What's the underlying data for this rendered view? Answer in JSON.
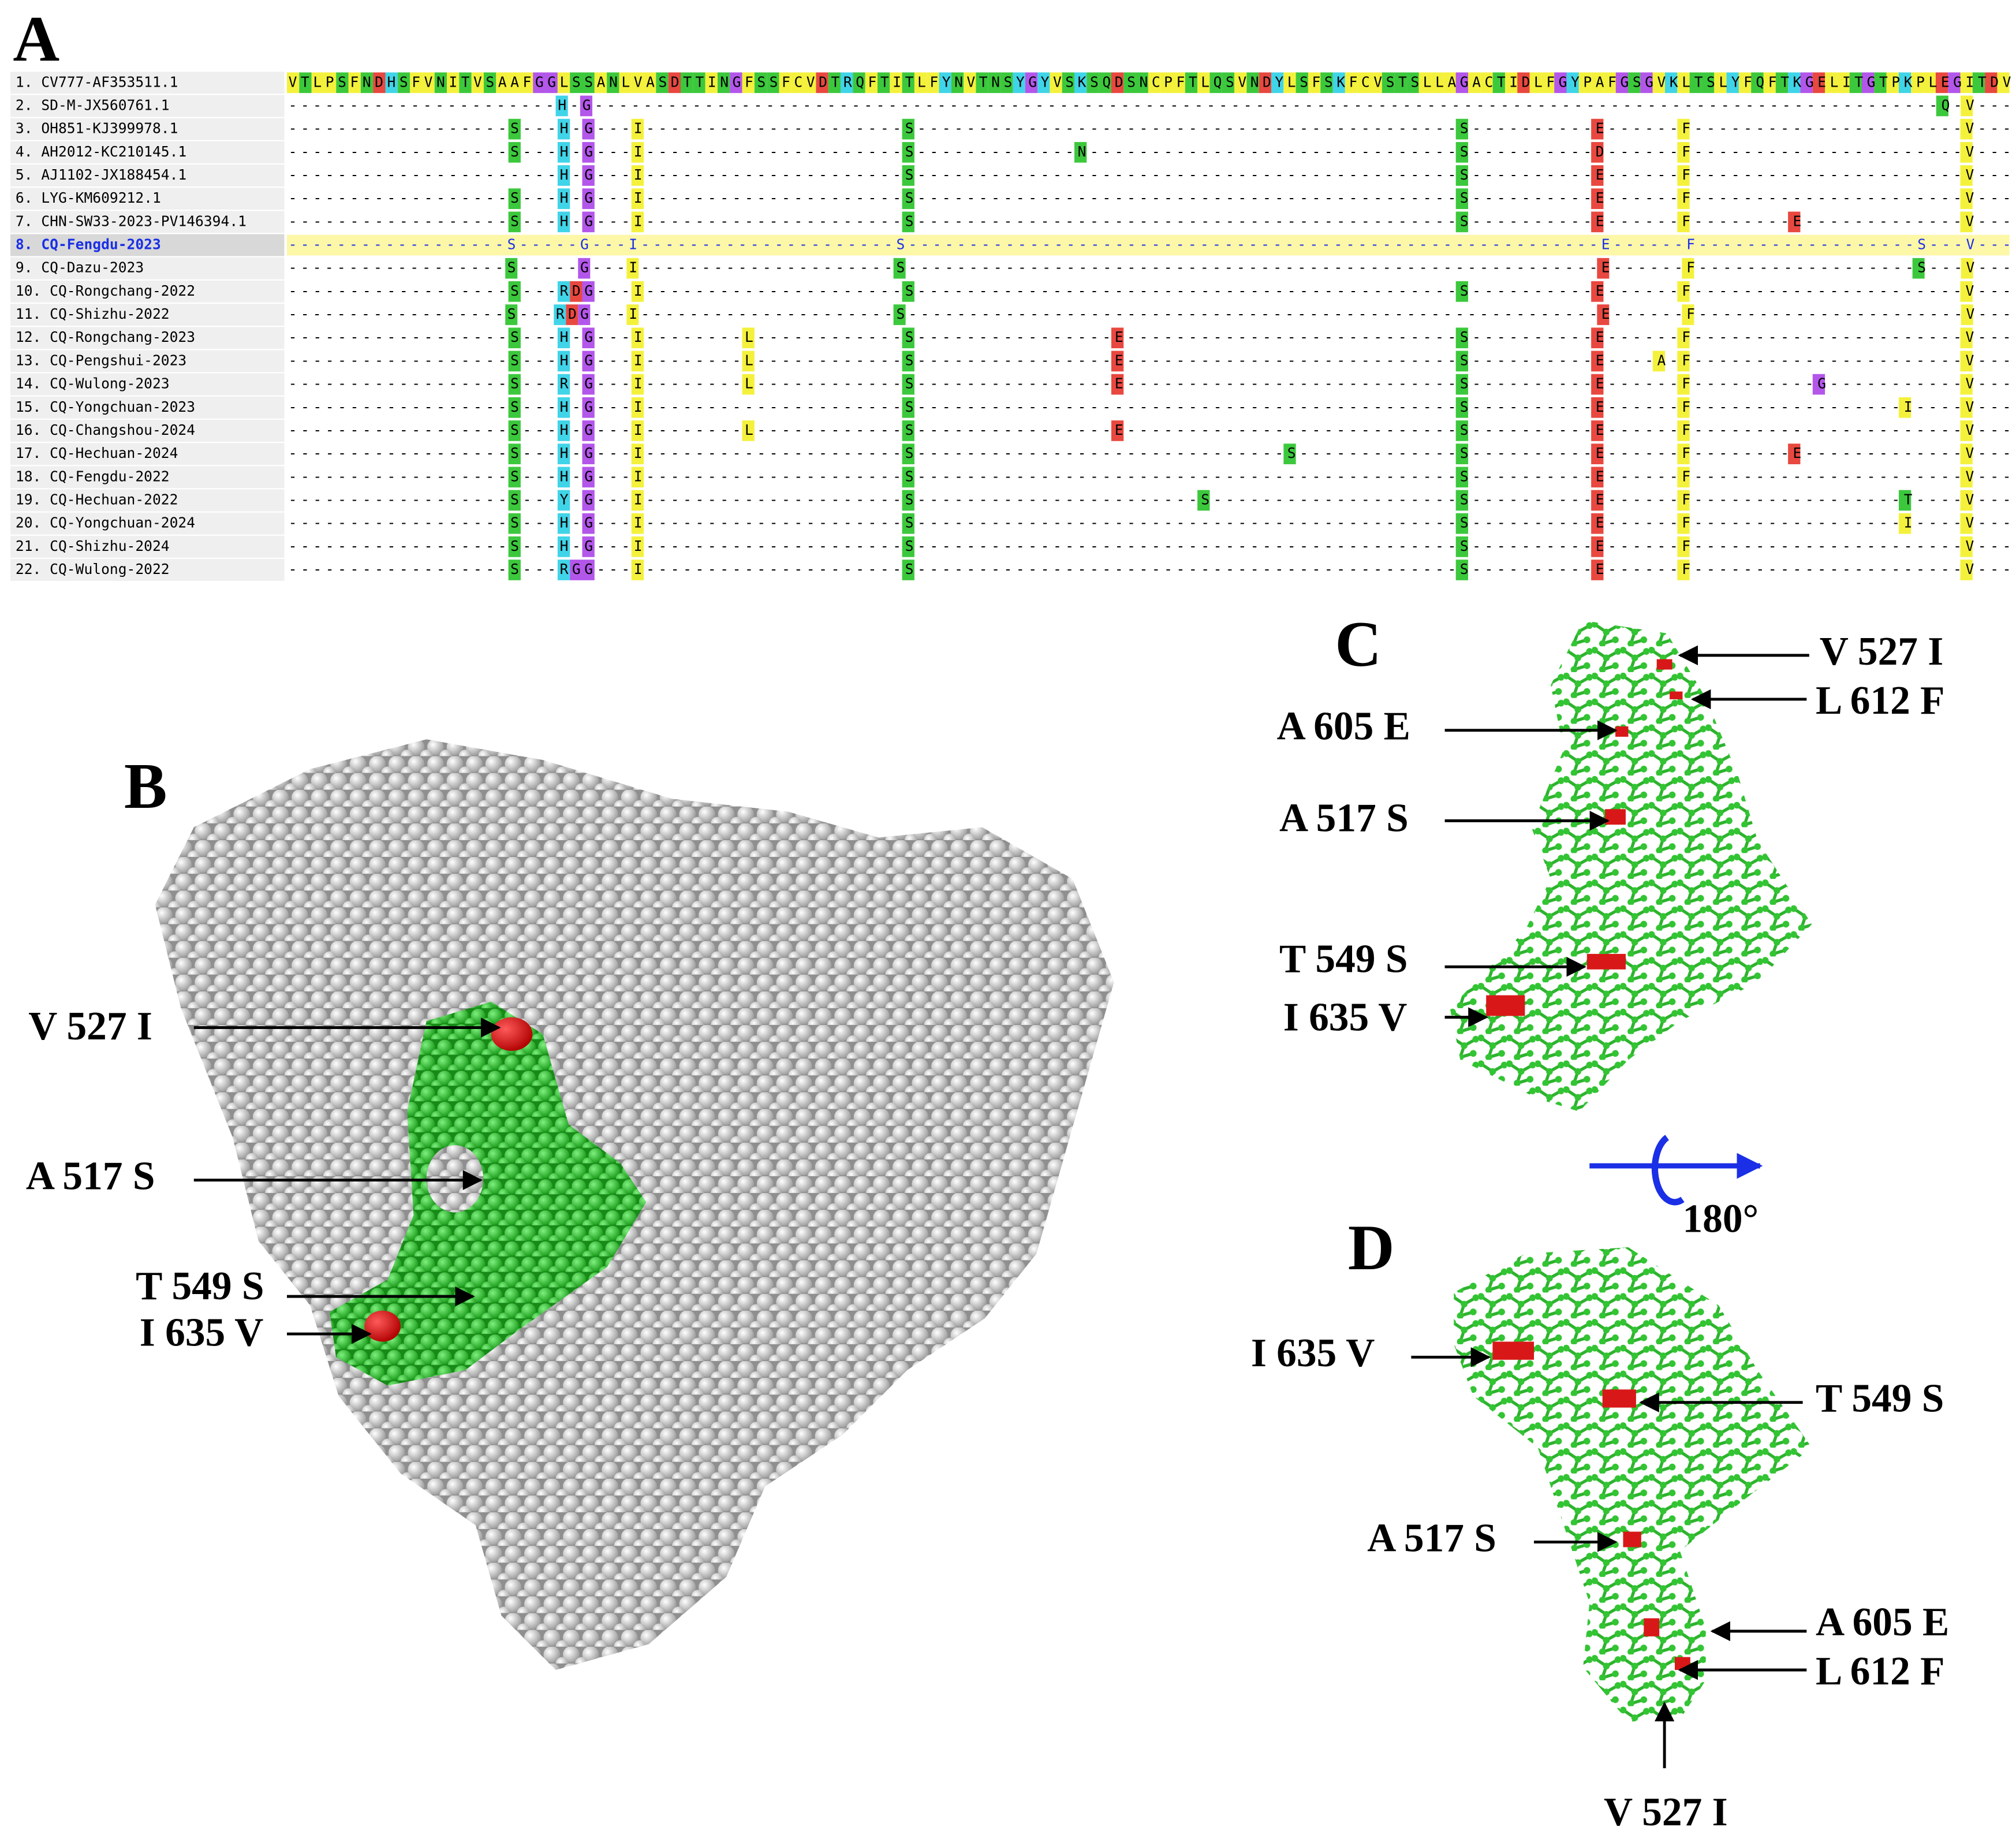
{
  "panel_a": {
    "label": "A",
    "rows": [
      {
        "name": "1. CV777-AF353511.1",
        "seq": "VTLPSFNDHSFVNITVSAAFGGLSSANLVASDTTINGFSSFCVDTRQFTITLFYNVTNSYGYVSKSQDSNCPFTLQSVNDYLSFSKFCVSTSLLAGACTIDLFGYPAFGSGVKLTSLYFQFTKGELITGTPKPLEGITDV"
      },
      {
        "name": "2. SD-M-JX560761.1",
        "seq": "----------------------H-G--------------------------------------------------------------------------------------------------------------Q-V---"
      },
      {
        "name": "3. OH851-KJ399978.1",
        "seq": "------------------S---H-G---I---------------------S--------------------------------------------S----------E------F----------------------V---"
      },
      {
        "name": "4. AH2012-KC210145.1",
        "seq": "------------------S---H-G---I---------------------S-------------N------------------------------S----------D------F----------------------V---"
      },
      {
        "name": "5. AJ1102-JX188454.1",
        "seq": "----------------------H-G---I---------------------S--------------------------------------------S----------E------F----------------------V---"
      },
      {
        "name": "6. LYG-KM609212.1",
        "seq": "------------------S---H-G---I---------------------S--------------------------------------------S----------E------F----------------------V---"
      },
      {
        "name": "7. CHN-SW33-2023-PV146394.1",
        "seq": "------------------S---H-G---I---------------------S--------------------------------------------S----------E------F--------E-------------V---"
      },
      {
        "name": "8. CQ-Fengdu-2023",
        "seq": "------------------S-----G---I---------------------S---------------------------------------------------------E------F------------------S---V---"
      },
      {
        "name": "9. CQ-Dazu-2023",
        "seq": "------------------S-----G---I---------------------S---------------------------------------------------------E------F------------------S---V---"
      },
      {
        "name": "10. CQ-Rongchang-2022",
        "seq": "------------------S---RDG---I---------------------S--------------------------------------------S----------E------F----------------------V---"
      },
      {
        "name": "11. CQ-Shizhu-2022",
        "seq": "------------------S---RDG---I---------------------S---------------------------------------------------------E------F----------------------V---"
      },
      {
        "name": "12. CQ-Rongchang-2023",
        "seq": "------------------S---H-G---I--------L------------S----------------E---------------------------S----------E------F----------------------V---"
      },
      {
        "name": "13. CQ-Pengshui-2023",
        "seq": "------------------S---H-G---I--------L------------S----------------E---------------------------S----------E----A-F----------------------V---"
      },
      {
        "name": "14. CQ-Wulong-2023",
        "seq": "------------------S---R-G---I--------L------------S----------------E---------------------------S----------E------F----------G-----------V---"
      },
      {
        "name": "15. CQ-Yongchuan-2023",
        "seq": "------------------S---H-G---I---------------------S--------------------------------------------S----------E------F-----------------I----V---"
      },
      {
        "name": "16. CQ-Changshou-2024",
        "seq": "------------------S---H-G---I--------L------------S----------------E---------------------------S----------E------F----------------------V---"
      },
      {
        "name": "17. CQ-Hechuan-2024",
        "seq": "------------------S---H-G---I---------------------S------------------------------S-------------S----------E------F--------E-------------V---"
      },
      {
        "name": "18. CQ-Fengdu-2022",
        "seq": "------------------S---H-G---I---------------------S--------------------------------------------S----------E------F----------------------V---"
      },
      {
        "name": "19. CQ-Hechuan-2022",
        "seq": "------------------S---Y-G---I---------------------S-----------------------S--------------------S----------E------F-----------------T----V---"
      },
      {
        "name": "20. CQ-Yongchuan-2024",
        "seq": "------------------S---H-G---I---------------------S--------------------------------------------S----------E------F-----------------I----V---"
      },
      {
        "name": "21. CQ-Shizhu-2024",
        "seq": "------------------S---H-G---I---------------------S--------------------------------------------S----------E------F----------------------V---"
      },
      {
        "name": "22. CQ-Wulong-2022",
        "seq": "------------------S---RGG---I---------------------S--------------------------------------------S----------E------F----------------------V---"
      }
    ]
  },
  "panel_b": {
    "label": "B",
    "annotations": [
      "V 527 I",
      "A 517 S",
      "T 549 S",
      "I 635 V"
    ]
  },
  "panel_c": {
    "label": "C",
    "annotations": [
      "V 527 I",
      "L 612 F",
      "A 605 E",
      "A 517 S",
      "T 549 S",
      "I 635 V"
    ]
  },
  "rotation": "180°",
  "panel_d": {
    "label": "D",
    "annotations": [
      "I 635 V",
      "T 549 S",
      "A 517 S",
      "A 605 E",
      "L 612 F",
      "V 527 I"
    ]
  }
}
